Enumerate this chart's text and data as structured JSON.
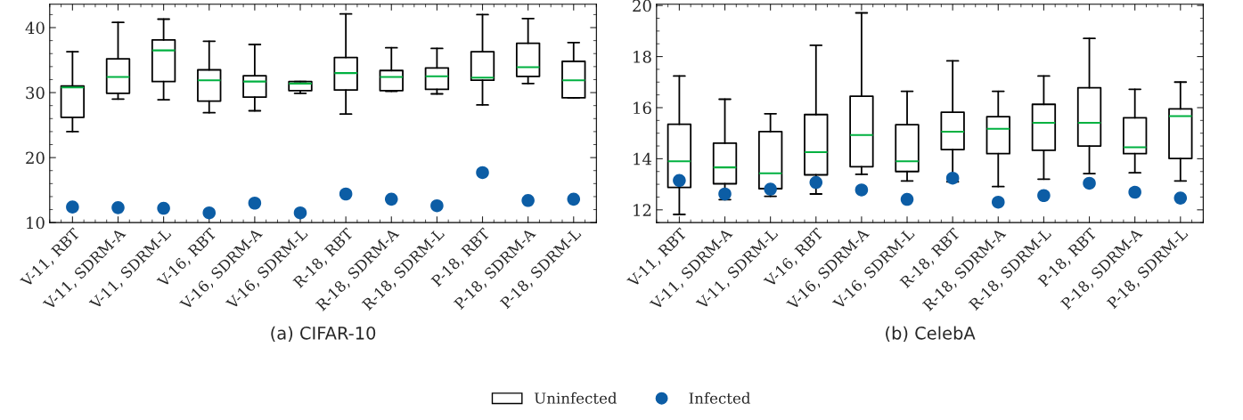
{
  "chart_data": [
    {
      "type": "box",
      "xlabel": "(a) CIFAR-10",
      "categories": [
        "V-11, RBT",
        "V-11, SDRM-A",
        "V-11, SDRM-L",
        "V-16, RBT",
        "V-16, SDRM-A",
        "V-16, SDRM-L",
        "R-18, RBT",
        "R-18, SDRM-A",
        "R-18, SDRM-L",
        "P-18, RBT",
        "P-18, SDRM-A",
        "P-18, SDRM-L"
      ],
      "ylim": [
        10,
        43.6
      ],
      "yticks": [
        10,
        20,
        30,
        40
      ],
      "legend": "bottom",
      "series": [
        {
          "name": "Uninfected",
          "type": "box",
          "color": "#000000",
          "boxes": [
            {
              "low": 24.0,
              "q1": 26.2,
              "median": 30.8,
              "q3": 31.0,
              "high": 36.3
            },
            {
              "low": 29.0,
              "q1": 29.9,
              "median": 32.4,
              "q3": 35.2,
              "high": 40.8
            },
            {
              "low": 28.9,
              "q1": 31.7,
              "median": 36.5,
              "q3": 38.1,
              "high": 41.3
            },
            {
              "low": 26.9,
              "q1": 28.7,
              "median": 31.9,
              "q3": 33.5,
              "high": 37.9
            },
            {
              "low": 27.2,
              "q1": 29.3,
              "median": 31.7,
              "q3": 32.6,
              "high": 37.4
            },
            {
              "low": 29.9,
              "q1": 30.3,
              "median": 31.4,
              "q3": 31.7,
              "high": 31.7
            },
            {
              "low": 26.7,
              "q1": 30.4,
              "median": 33.0,
              "q3": 35.4,
              "high": 42.1
            },
            {
              "low": 30.2,
              "q1": 30.3,
              "median": 32.4,
              "q3": 33.4,
              "high": 36.9
            },
            {
              "low": 29.8,
              "q1": 30.5,
              "median": 32.5,
              "q3": 33.8,
              "high": 36.8
            },
            {
              "low": 28.1,
              "q1": 31.9,
              "median": 32.3,
              "q3": 36.3,
              "high": 42.0
            },
            {
              "low": 31.4,
              "q1": 32.5,
              "median": 33.9,
              "q3": 37.6,
              "high": 41.4
            },
            {
              "low": 29.2,
              "q1": 29.2,
              "median": 31.9,
              "q3": 34.8,
              "high": 37.7
            }
          ]
        },
        {
          "name": "Infected",
          "type": "scatter",
          "color": "#0c5da5",
          "marker": "circle",
          "x": [
            "V-11, RBT",
            "V-11, SDRM-A",
            "V-11, SDRM-L",
            "V-16, RBT",
            "V-16, SDRM-A",
            "V-16, SDRM-L",
            "R-18, RBT",
            "R-18, SDRM-A",
            "R-18, SDRM-L",
            "P-18, RBT",
            "P-18, SDRM-A",
            "P-18, SDRM-L"
          ],
          "values": [
            12.4,
            12.3,
            12.2,
            11.5,
            13.0,
            11.5,
            14.4,
            13.6,
            12.6,
            17.7,
            13.4,
            13.6
          ]
        }
      ]
    },
    {
      "type": "box",
      "xlabel": "(b) CelebA",
      "categories": [
        "V-11, RBT",
        "V-11, SDRM-A",
        "V-11, SDRM-L",
        "V-16, RBT",
        "V-16, SDRM-A",
        "V-16, SDRM-L",
        "R-18, RBT",
        "R-18, SDRM-A",
        "R-18, SDRM-L",
        "P-18, RBT",
        "P-18, SDRM-A",
        "P-18, SDRM-L"
      ],
      "ylim": [
        11.5,
        20.05
      ],
      "yticks": [
        12,
        14,
        16,
        18,
        20
      ],
      "legend": "bottom",
      "series": [
        {
          "name": "Uninfected",
          "type": "box",
          "color": "#000000",
          "boxes": [
            {
              "low": 11.82,
              "q1": 12.88,
              "median": 13.9,
              "q3": 15.35,
              "high": 17.24
            },
            {
              "low": 12.4,
              "q1": 13.02,
              "median": 13.66,
              "q3": 14.61,
              "high": 16.33
            },
            {
              "low": 12.53,
              "q1": 12.83,
              "median": 13.43,
              "q3": 15.06,
              "high": 15.76
            },
            {
              "low": 12.62,
              "q1": 13.37,
              "median": 14.26,
              "q3": 15.73,
              "high": 18.44
            },
            {
              "low": 13.39,
              "q1": 13.69,
              "median": 14.93,
              "q3": 16.45,
              "high": 19.71
            },
            {
              "low": 13.13,
              "q1": 13.5,
              "median": 13.9,
              "q3": 15.33,
              "high": 16.64
            },
            {
              "low": 13.1,
              "q1": 14.36,
              "median": 15.06,
              "q3": 15.82,
              "high": 17.83
            },
            {
              "low": 12.91,
              "q1": 14.2,
              "median": 15.17,
              "q3": 15.65,
              "high": 16.64
            },
            {
              "low": 13.2,
              "q1": 14.33,
              "median": 15.41,
              "q3": 16.13,
              "high": 17.24
            },
            {
              "low": 13.42,
              "q1": 14.5,
              "median": 15.41,
              "q3": 16.78,
              "high": 18.71
            },
            {
              "low": 13.45,
              "q1": 14.2,
              "median": 14.45,
              "q3": 15.6,
              "high": 16.72
            },
            {
              "low": 13.13,
              "q1": 14.01,
              "median": 15.67,
              "q3": 15.95,
              "high": 17.0
            }
          ]
        },
        {
          "name": "Infected",
          "type": "scatter",
          "color": "#0c5da5",
          "marker": "circle",
          "x": [
            "V-11, RBT",
            "V-11, SDRM-A",
            "V-11, SDRM-L",
            "V-16, RBT",
            "V-16, SDRM-A",
            "V-16, SDRM-L",
            "R-18, RBT",
            "R-18, SDRM-A",
            "R-18, SDRM-L",
            "P-18, RBT",
            "P-18, SDRM-A",
            "P-18, SDRM-L"
          ],
          "values": [
            13.15,
            12.62,
            12.81,
            13.07,
            12.78,
            12.41,
            13.24,
            12.3,
            12.56,
            13.04,
            12.69,
            12.46
          ]
        }
      ]
    }
  ]
}
